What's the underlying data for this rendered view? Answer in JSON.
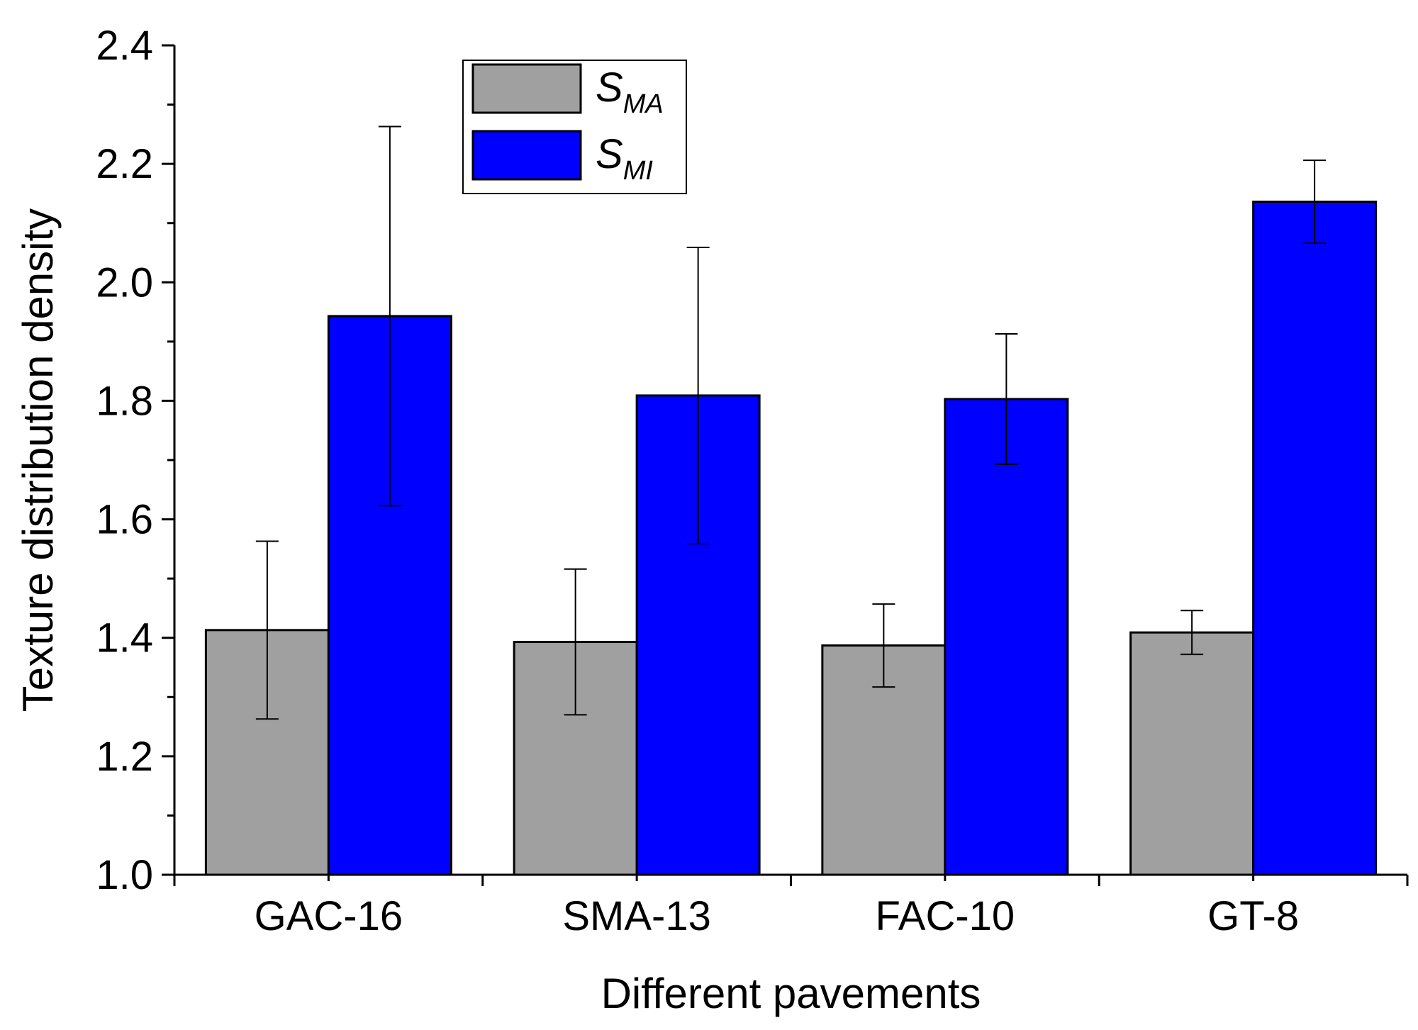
{
  "chart_data": {
    "type": "bar",
    "title": "",
    "xlabel": "Different pavements",
    "ylabel": "Texture distribution density",
    "ylim": [
      1.0,
      2.4
    ],
    "yticks": [
      "1.0",
      "1.2",
      "1.4",
      "1.6",
      "1.8",
      "2.0",
      "2.2",
      "2.4"
    ],
    "categories": [
      "GAC-16",
      "SMA-13",
      "FAC-10",
      "GT-8"
    ],
    "grid": false,
    "legend_position": "top-center",
    "series": [
      {
        "legend_main": "S",
        "legend_sub": "MA",
        "color": "#a0a0a0",
        "values": [
          1.413,
          1.393,
          1.387,
          1.409
        ],
        "errors": [
          0.15,
          0.123,
          0.07,
          0.037
        ]
      },
      {
        "legend_main": "S",
        "legend_sub": "MI",
        "color": "#0000ff",
        "values": [
          1.943,
          1.809,
          1.803,
          2.136
        ],
        "errors": [
          0.32,
          0.25,
          0.11,
          0.07
        ]
      }
    ]
  }
}
